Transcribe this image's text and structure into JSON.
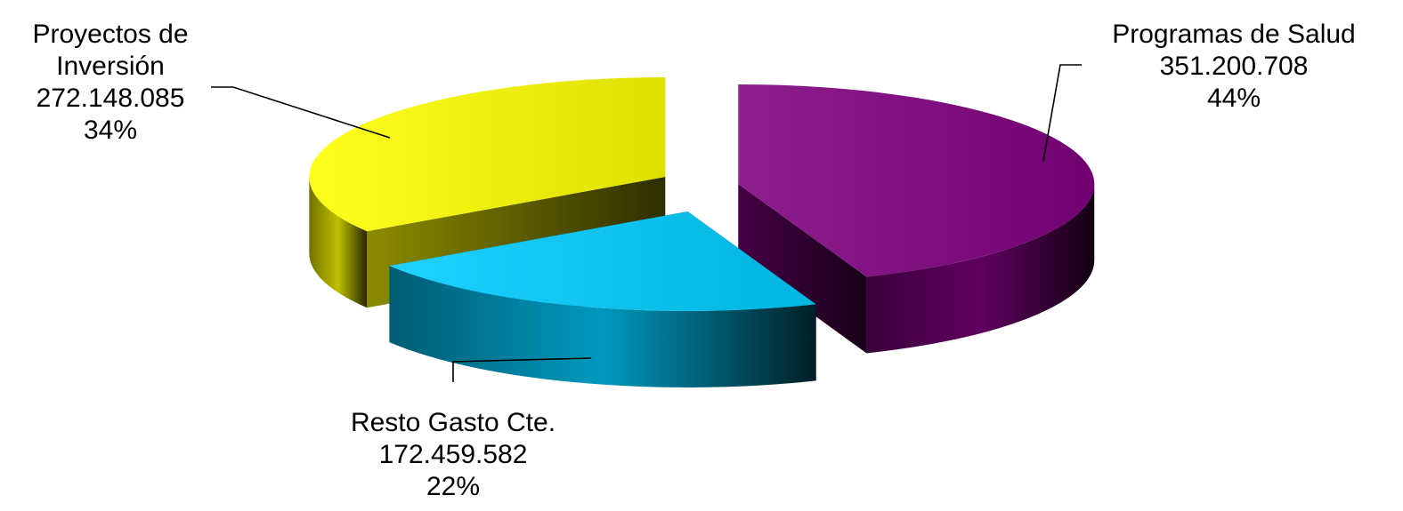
{
  "chart_data": {
    "type": "pie",
    "style": "3d-exploded",
    "legend": "none",
    "slices": [
      {
        "name_lines": [
          "Programas de Salud"
        ],
        "value_label": "351.200.708",
        "value": 351200708,
        "percent_label": "44%",
        "color": "#800080"
      },
      {
        "name_lines": [
          "Resto Gasto Cte."
        ],
        "value_label": "172.459.582",
        "value": 172459582,
        "percent_label": "22%",
        "color": "#00CCFF"
      },
      {
        "name_lines": [
          "Proyectos de",
          "Inversión"
        ],
        "value_label": "272.148.085",
        "value": 272148085,
        "percent_label": "34%",
        "color": "#FFFF00"
      }
    ]
  }
}
